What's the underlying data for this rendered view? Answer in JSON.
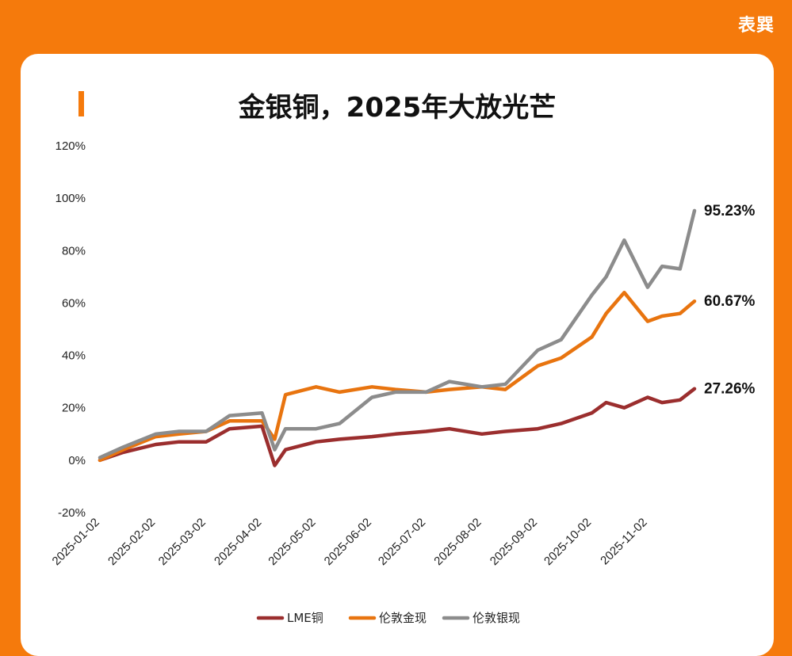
{
  "brand": "表巽",
  "title": "金银铜，2025年大放光芒",
  "colors": {
    "background": "#F57A0C",
    "card": "#FFFFFF",
    "copper": "#9B2E2E",
    "gold": "#E8740F",
    "silver": "#8C8C8C"
  },
  "chart_data": {
    "type": "line",
    "yticks": [
      "120%",
      "100%",
      "80%",
      "60%",
      "40%",
      "20%",
      "0%",
      "-20%"
    ],
    "ylim": [
      -20,
      120
    ],
    "xticks": [
      "2025-01-02",
      "2025-02-02",
      "2025-03-02",
      "2025-04-02",
      "2025-05-02",
      "2025-06-02",
      "2025-07-02",
      "2025-08-02",
      "2025-09-02",
      "2025-10-02",
      "2025-11-02"
    ],
    "x": [
      "2025-01-02",
      "2025-01-15",
      "2025-02-02",
      "2025-02-15",
      "2025-03-02",
      "2025-03-15",
      "2025-04-02",
      "2025-04-09",
      "2025-04-15",
      "2025-05-02",
      "2025-05-15",
      "2025-06-02",
      "2025-06-15",
      "2025-07-02",
      "2025-07-15",
      "2025-08-02",
      "2025-08-15",
      "2025-09-02",
      "2025-09-15",
      "2025-10-02",
      "2025-10-10",
      "2025-10-20",
      "2025-11-02",
      "2025-11-10",
      "2025-11-20",
      "2025-11-28"
    ],
    "series": [
      {
        "name": "LME铜",
        "color": "#9B2E2E",
        "end_label": "27.26%",
        "values": [
          0,
          3,
          6,
          7,
          7,
          12,
          13,
          -2,
          4,
          7,
          8,
          9,
          10,
          11,
          12,
          10,
          11,
          12,
          14,
          18,
          22,
          20,
          24,
          22,
          23,
          27.26
        ]
      },
      {
        "name": "伦敦金现",
        "color": "#E8740F",
        "end_label": "60.67%",
        "values": [
          0,
          4,
          9,
          10,
          11,
          15,
          15,
          8,
          25,
          28,
          26,
          28,
          27,
          26,
          27,
          28,
          27,
          36,
          39,
          47,
          56,
          64,
          53,
          55,
          56,
          60.67
        ]
      },
      {
        "name": "伦敦银现",
        "color": "#8C8C8C",
        "end_label": "95.23%",
        "values": [
          1,
          5,
          10,
          11,
          11,
          17,
          18,
          4,
          12,
          12,
          14,
          24,
          26,
          26,
          30,
          28,
          29,
          42,
          46,
          63,
          70,
          84,
          66,
          74,
          73,
          95.23
        ]
      }
    ],
    "legend": [
      "LME铜",
      "伦敦金现",
      "伦敦银现"
    ],
    "legend_position": "bottom"
  }
}
